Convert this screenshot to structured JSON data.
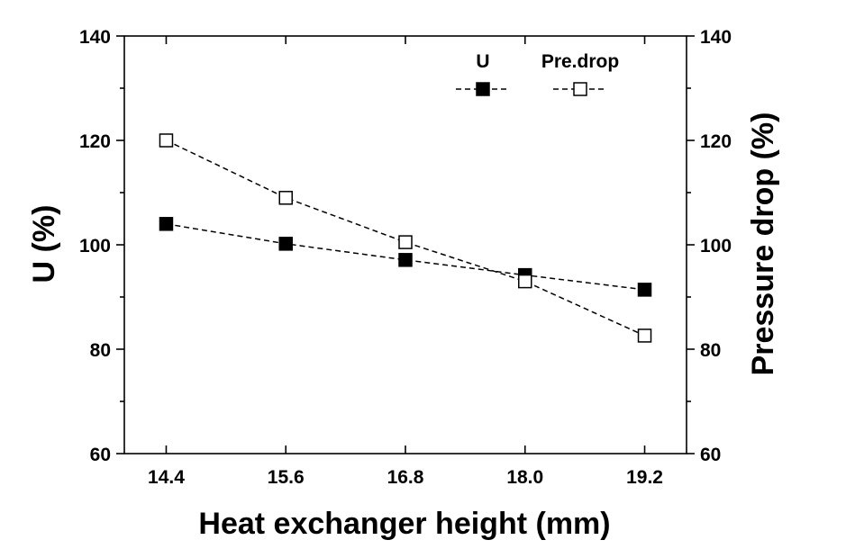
{
  "chart_data": {
    "type": "line",
    "xlabel": "Heat exchanger height (mm)",
    "ylabel_left": "U (%)",
    "ylabel_right": "Pressure drop (%)",
    "x": [
      14.4,
      15.6,
      16.8,
      18.0,
      19.2
    ],
    "x_tick_labels": [
      "14.4",
      "15.6",
      "16.8",
      "18.0",
      "19.2"
    ],
    "xlim": [
      13.98,
      19.62
    ],
    "ylim_left": [
      60,
      140
    ],
    "ylim_right": [
      60,
      140
    ],
    "y_ticks": [
      60,
      80,
      100,
      120,
      140
    ],
    "y_tick_labels": [
      "60",
      "80",
      "100",
      "120",
      "140"
    ],
    "grid": false,
    "legend_position": "top-right",
    "series": [
      {
        "name": "U",
        "axis": "left",
        "marker": "filled-square",
        "color": "#000000",
        "values": [
          104.0,
          100.2,
          97.1,
          94.2,
          91.4
        ]
      },
      {
        "name": "Pre.drop",
        "axis": "right",
        "marker": "open-square",
        "color": "#000000",
        "values": [
          120.0,
          109.0,
          100.5,
          93.0,
          82.6
        ]
      }
    ]
  }
}
